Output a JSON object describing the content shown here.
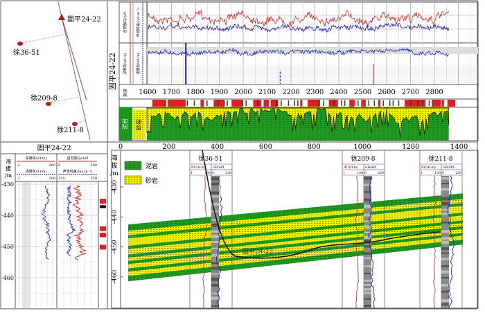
{
  "map": {
    "wells": [
      {
        "name": "固平24-22",
        "type": "horizontal"
      },
      {
        "name": "徐36-51",
        "type": "vertical"
      },
      {
        "name": "徐209-8",
        "type": "vertical"
      },
      {
        "name": "徐211-8",
        "type": "vertical"
      }
    ]
  },
  "top_log": {
    "well_label": "固平24-22",
    "track1_labels": [
      "自然伽马/API",
      "声波时差/(μs·m⁻¹)"
    ],
    "track1_scales": [
      [
        "0",
        "200"
      ],
      [
        "150",
        "350"
      ]
    ],
    "track2_labels": [
      "深侧向/(Ω·m)",
      "浅侧向/(Ω·m)"
    ],
    "track2_scales": [
      [
        "2",
        "200"
      ],
      [
        "2",
        "200"
      ]
    ],
    "depth_header": "测深",
    "depth_ticks": [
      "1600",
      "1700",
      "1800",
      "1900",
      "2000",
      "2100",
      "2200",
      "2300",
      "2400",
      "2500",
      "2600",
      "2700",
      "2800"
    ],
    "lith_legend": [
      "泥岩",
      "砂岩"
    ]
  },
  "distance_axis": {
    "ticks": [
      "0",
      "200",
      "400",
      "600",
      "800",
      "1000",
      "1200",
      "1400"
    ]
  },
  "left_log": {
    "title": "固平24-22",
    "elev_label": [
      "海",
      "拔",
      "/m"
    ],
    "deep_res": {
      "label": "深侧向/(Ω·m)",
      "min": "2",
      "max": "200"
    },
    "shallow_res": {
      "label": "浅侧向/(Ω·m)",
      "min": "2",
      "max": "200"
    },
    "gr": {
      "label": "自然伽马/API",
      "min": "0",
      "max": "200"
    },
    "ac": {
      "label": "声波时差/(μs·m⁻¹)",
      "min": "150",
      "max": "350"
    },
    "depth_ticks": [
      "-430",
      "-440",
      "-450",
      "-460"
    ]
  },
  "section": {
    "elev_label": [
      "海",
      "拔",
      "/m"
    ],
    "depth_ticks": [
      "-430",
      "-440",
      "-450",
      "-460"
    ],
    "legend": [
      {
        "label": "泥岩",
        "color": "#1e9a1e"
      },
      {
        "label": "砂岩",
        "color": "#f5f000"
      }
    ],
    "trajectory_label": "固平24-22",
    "wells": [
      {
        "name": "徐36-51",
        "rt": "RT/(Ω·m)",
        "rt_min": "1",
        "rt_max": "100",
        "gr": "GR/API",
        "gr_min": "0",
        "gr_max": "230"
      },
      {
        "name": "徐209-8",
        "rt": "RT/(Ω·m)",
        "rt_min": "1",
        "rt_max": "100",
        "gr": "GR/API",
        "gr_min": "0",
        "gr_max": "230"
      },
      {
        "name": "徐211-8",
        "rt": "RT/(Ω·m)",
        "rt_min": "1",
        "rt_max": "100",
        "gr": "GR/API",
        "gr_min": "0",
        "gr_max": "230"
      }
    ]
  },
  "colors": {
    "mudstone": "#1e9a1e",
    "sandstone": "#f5f000",
    "red": "#e02020",
    "blue": "#1a1acc"
  }
}
